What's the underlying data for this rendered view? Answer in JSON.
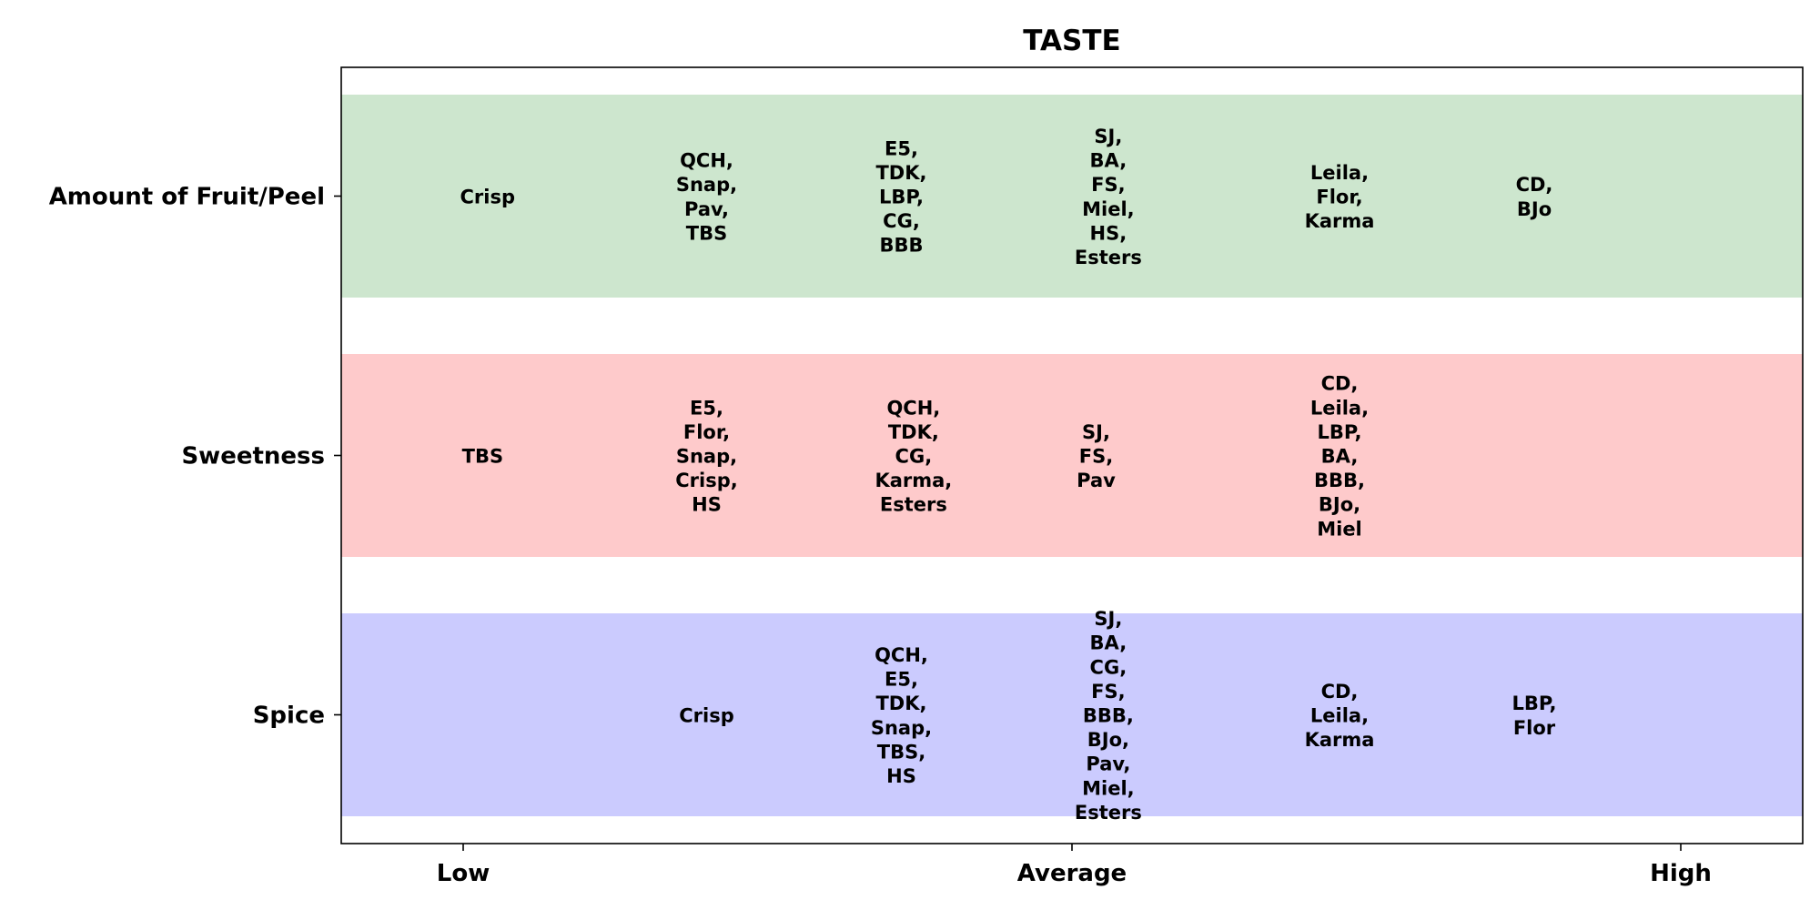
{
  "chart_data": {
    "type": "table",
    "title": "TASTE",
    "xlabel": "",
    "ylabel": "",
    "x_ticks": [
      "Low",
      "Average",
      "High"
    ],
    "grid": false,
    "rows": [
      {
        "label": "Amount of Fruit/Peel",
        "color": "#cde6ce",
        "cells": [
          {
            "x": 0.1,
            "items": [
              "Crisp"
            ]
          },
          {
            "x": 1.0,
            "items": [
              "QCH,",
              "Snap,",
              "Pav,",
              "TBS"
            ]
          },
          {
            "x": 1.8,
            "items": [
              "E5,",
              "TDK,",
              "LBP,",
              "CG,",
              "BBB"
            ]
          },
          {
            "x": 2.65,
            "items": [
              "SJ,",
              "BA,",
              "FS,",
              "Miel,",
              "HS,",
              "Esters"
            ]
          },
          {
            "x": 3.6,
            "items": [
              "Leila,",
              "Flor,",
              "Karma"
            ]
          },
          {
            "x": 4.4,
            "items": [
              "CD,",
              "BJo"
            ]
          }
        ]
      },
      {
        "label": "Sweetness",
        "color": "#fecacb",
        "cells": [
          {
            "x": 0.08,
            "items": [
              "TBS"
            ]
          },
          {
            "x": 1.0,
            "items": [
              "E5,",
              "Flor,",
              "Snap,",
              "Crisp,",
              "HS"
            ]
          },
          {
            "x": 1.85,
            "items": [
              "QCH,",
              "TDK,",
              "CG,",
              "Karma,",
              "Esters"
            ]
          },
          {
            "x": 2.6,
            "items": [
              "SJ,",
              "FS,",
              "Pav"
            ]
          },
          {
            "x": 3.6,
            "items": [
              "CD,",
              "Leila,",
              "LBP,",
              "BA,",
              "BBB,",
              "BJo,",
              "Miel"
            ]
          }
        ]
      },
      {
        "label": "Spice",
        "color": "#cbcbfe",
        "cells": [
          {
            "x": 1.0,
            "items": [
              "Crisp"
            ]
          },
          {
            "x": 1.8,
            "items": [
              "QCH,",
              "E5,",
              "TDK,",
              "Snap,",
              "TBS,",
              "HS"
            ]
          },
          {
            "x": 2.65,
            "items": [
              "SJ,",
              "BA,",
              "CG,",
              "FS,",
              "BBB,",
              "BJo,",
              "Pav,",
              "Miel,",
              "Esters"
            ]
          },
          {
            "x": 3.6,
            "items": [
              "CD,",
              "Leila,",
              "Karma"
            ]
          },
          {
            "x": 4.4,
            "items": [
              "LBP,",
              "Flor"
            ]
          }
        ]
      }
    ]
  }
}
